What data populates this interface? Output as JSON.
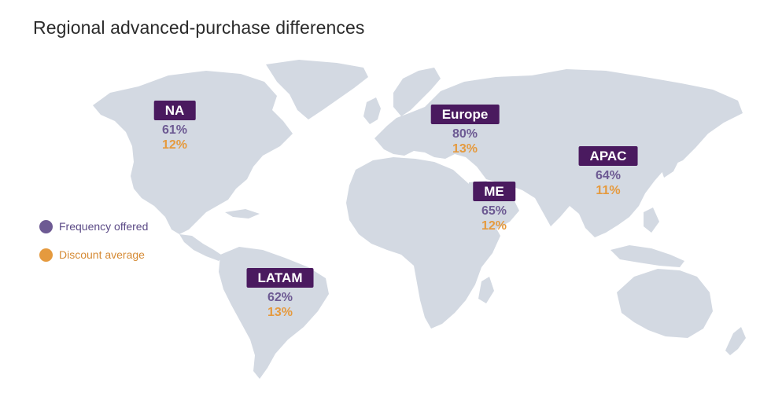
{
  "title": "Regional advanced-purchase differences",
  "legend": {
    "frequency": {
      "label": "Frequency offered",
      "color": "#6d5a93"
    },
    "discount": {
      "label": "Discount average",
      "color": "#e59a3e"
    }
  },
  "colors": {
    "land": "#d3d9e2",
    "badge": "#4a1a5f"
  },
  "regions": [
    {
      "name": "NA",
      "frequency": "61%",
      "discount": "12%"
    },
    {
      "name": "Europe",
      "frequency": "80%",
      "discount": "13%"
    },
    {
      "name": "APAC",
      "frequency": "64%",
      "discount": "11%"
    },
    {
      "name": "ME",
      "frequency": "65%",
      "discount": "12%"
    },
    {
      "name": "LATAM",
      "frequency": "62%",
      "discount": "13%"
    }
  ]
}
